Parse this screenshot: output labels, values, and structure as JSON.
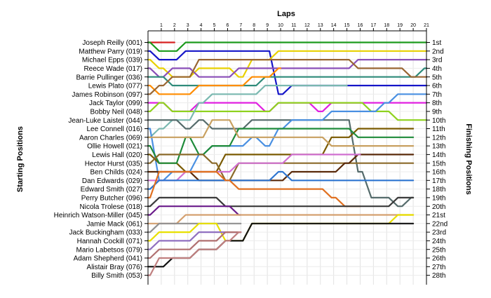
{
  "chart_data": {
    "type": "line",
    "title": "",
    "xlabel": "Laps",
    "ylabel_left": "Starting Positions",
    "ylabel_right": "Finishing Positions",
    "laps": [
      1,
      2,
      3,
      4,
      5,
      6,
      7,
      8,
      9,
      10,
      11,
      12,
      13,
      14,
      15,
      16,
      17,
      18,
      19,
      20,
      21
    ],
    "grid": true,
    "y_reversed": true,
    "start_labels": [
      "Joseph Reilly (001)",
      "Matthew Parry (019)",
      "Michael Epps (039)",
      "Reece Wade (017)",
      "Barrie Pullinger (036)",
      "Lewis Plato (077)",
      "James Robinson (097)",
      "Jack Taylor (099)",
      "Bobby Neil (048)",
      "Jean-Luke Laister (044)",
      "Lee Connell (016)",
      "Aaron Charles (069)",
      "Ollie Howell (021)",
      "Lewis Hall (020)",
      "Hector Hurst (035)",
      "Ben Childs (024)",
      "Dan Edwards (029)",
      "Edward Smith (027)",
      "Perry Butcher (096)",
      "Nicola Trolese (018)",
      "Heinrich Watson-Miller (045)",
      "Jamie Mack (061)",
      "Jack Buckingham (033)",
      "Hannah Cockill (071)",
      "Mario Labetsos (079)",
      "Adam Shepherd (041)",
      "Alistair Bray (076)",
      "Billy Smith (053)"
    ],
    "finish_labels": [
      "1st",
      "2nd",
      "3rd",
      "4th",
      "5th",
      "6th",
      "7th",
      "8th",
      "9th",
      "10th",
      "11th",
      "12th",
      "13th",
      "14th",
      "15th",
      "16th",
      "17th",
      "18th",
      "19th",
      "20th",
      "21st",
      "22nd",
      "23rd",
      "24th",
      "25th",
      "26th",
      "27th",
      "28th"
    ],
    "series": [
      {
        "color": "#d62020",
        "positions": [
          1,
          1,
          1
        ]
      },
      {
        "color": "#1c9a1c",
        "positions": [
          1,
          2,
          2,
          1,
          1,
          1,
          1,
          1,
          1,
          1,
          1,
          1,
          1,
          1,
          1,
          1,
          1,
          1,
          1,
          1,
          1,
          1
        ]
      },
      {
        "color": "#1515c8",
        "positions": [
          2,
          3,
          3,
          2,
          2,
          2,
          2,
          2,
          2,
          2,
          7,
          6,
          6,
          6,
          6,
          6,
          6,
          6,
          6,
          6,
          6,
          6
        ]
      },
      {
        "color": "#e8d000",
        "positions": [
          3,
          4,
          5,
          5,
          4,
          4,
          4,
          5,
          3,
          3,
          2,
          2,
          2,
          2,
          2,
          2,
          2,
          2,
          2,
          2,
          2,
          2
        ]
      },
      {
        "color": "#8a4fb8",
        "positions": [
          4,
          5,
          4,
          4,
          5,
          5,
          5,
          4,
          4,
          4,
          4,
          4,
          4,
          4,
          4,
          4,
          3,
          3,
          3,
          3,
          3,
          3
        ]
      },
      {
        "color": "#2e8b7a",
        "positions": [
          5,
          5,
          6,
          6,
          6,
          6,
          6,
          6,
          6,
          5,
          5,
          5,
          5,
          5,
          5,
          5,
          5,
          5,
          5,
          5,
          5,
          4
        ]
      },
      {
        "color": "#ff8c00",
        "positions": [
          6,
          7,
          7,
          7,
          6,
          6,
          6,
          6,
          5,
          5,
          4
        ]
      },
      {
        "color": "#996633",
        "positions": [
          7,
          6,
          5,
          5,
          3,
          3,
          3,
          3,
          3,
          3,
          3,
          3,
          3,
          3,
          3,
          3,
          4,
          4,
          4,
          4,
          5,
          5
        ]
      },
      {
        "color": "#e020e0",
        "positions": [
          8,
          8,
          9,
          9,
          8,
          8,
          8,
          8,
          8,
          9,
          8,
          8,
          8,
          9,
          8,
          8,
          8,
          8,
          8,
          8,
          8,
          8
        ]
      },
      {
        "color": "#8fd21f",
        "positions": [
          9,
          8,
          9,
          9,
          9,
          9,
          9,
          9,
          9,
          9,
          8,
          8,
          8,
          8,
          8,
          8,
          8,
          9,
          9,
          10,
          10,
          10
        ]
      },
      {
        "color": "#7ab8b0",
        "positions": [
          12,
          11,
          10,
          10,
          8,
          7,
          7,
          7,
          7,
          6,
          6,
          6,
          6,
          6,
          6,
          6
        ]
      },
      {
        "color": "#556b6b",
        "positions": [
          10,
          10,
          10,
          11,
          10,
          11,
          11,
          11,
          10,
          10,
          10,
          10,
          10,
          10,
          10,
          10,
          16,
          19,
          19,
          20,
          19
        ]
      },
      {
        "color": "#4a90e2",
        "positions": [
          11,
          17,
          16,
          16,
          14,
          13,
          13,
          13,
          12,
          13,
          11,
          10,
          10,
          10,
          9,
          9,
          9,
          9,
          8,
          7,
          7,
          7
        ]
      },
      {
        "color": "#7a5a00",
        "positions": [
          14,
          15,
          15,
          16,
          16,
          16,
          14,
          14,
          14,
          14,
          14,
          14,
          14,
          14,
          12,
          12,
          11,
          11,
          11,
          11,
          11
        ]
      },
      {
        "color": "#1f8b3a",
        "positions": [
          13,
          15,
          15,
          12,
          14,
          13,
          13,
          11,
          11,
          11,
          11,
          11,
          11,
          11,
          11,
          11,
          12,
          12,
          12,
          12,
          12
        ]
      },
      {
        "color": "#c8a060",
        "positions": [
          12,
          12,
          12,
          12,
          12,
          10,
          10,
          12,
          12,
          12,
          12,
          12,
          12,
          12,
          13,
          13,
          13,
          13,
          13,
          13,
          13
        ]
      },
      {
        "color": "#8b6a2a",
        "positions": [
          15,
          14,
          14,
          14,
          14,
          15,
          17,
          15,
          15,
          15,
          15,
          15,
          15,
          15,
          15,
          15,
          15,
          15,
          15,
          15,
          15
        ]
      },
      {
        "color": "#5a2a0a",
        "positions": [
          16,
          16,
          16,
          16,
          17,
          17,
          17,
          17,
          17,
          17,
          17,
          16,
          16,
          16,
          16,
          15,
          14,
          14,
          14,
          14,
          14
        ]
      },
      {
        "color": "#d070d0",
        "positions": [
          17,
          17,
          17,
          16,
          16,
          16,
          16,
          15,
          15,
          15,
          15,
          14,
          14,
          14,
          14,
          14,
          14
        ]
      },
      {
        "color": "#2e75d0",
        "positions": [
          18,
          17,
          17,
          17,
          17,
          17,
          17,
          17,
          17,
          17,
          16,
          17,
          17,
          17,
          17,
          17,
          17,
          17,
          17,
          17,
          17
        ]
      },
      {
        "color": "#e07020",
        "positions": [
          19,
          16,
          16,
          16,
          16,
          16,
          17,
          18,
          18,
          18,
          18,
          18,
          18,
          18,
          19,
          20,
          20
        ]
      },
      {
        "color": "#3a3a3a",
        "positions": [
          20,
          19,
          19,
          19,
          19,
          19,
          20,
          20,
          20,
          20,
          20,
          20,
          20,
          20,
          20,
          20,
          20,
          20,
          20,
          19,
          19
        ]
      },
      {
        "color": "#6a1a8a",
        "positions": [
          21,
          20,
          20,
          20,
          20,
          20,
          20,
          21
        ]
      },
      {
        "color": "#d4a070",
        "positions": [
          22,
          22,
          22,
          21,
          21,
          21,
          21,
          21,
          21,
          21,
          21,
          21,
          21,
          21,
          21,
          21,
          21,
          21,
          21,
          21,
          21
        ]
      },
      {
        "color": "#909090",
        "positions": [
          23,
          22,
          22,
          22,
          22,
          22,
          22,
          22
        ]
      },
      {
        "color": "#e8e000",
        "positions": [
          24,
          23,
          23,
          23,
          22,
          22,
          24,
          24,
          22,
          22,
          22,
          22,
          22,
          22,
          22,
          22,
          22,
          22,
          22,
          21,
          21
        ]
      },
      {
        "color": "#9070c0",
        "positions": [
          25,
          24,
          24,
          24,
          23,
          23,
          23,
          23
        ]
      },
      {
        "color": "#b07070",
        "positions": [
          26,
          25,
          25,
          25,
          24,
          24,
          23,
          23
        ]
      },
      {
        "color": "#101010",
        "positions": [
          27,
          27,
          26,
          26,
          25,
          25,
          24,
          24,
          22,
          22,
          22,
          22,
          22,
          22,
          22,
          22,
          22,
          22,
          22,
          22,
          22
        ]
      },
      {
        "color": "#c08080",
        "positions": [
          28,
          26,
          26,
          26,
          25,
          25,
          24,
          23
        ]
      }
    ]
  }
}
